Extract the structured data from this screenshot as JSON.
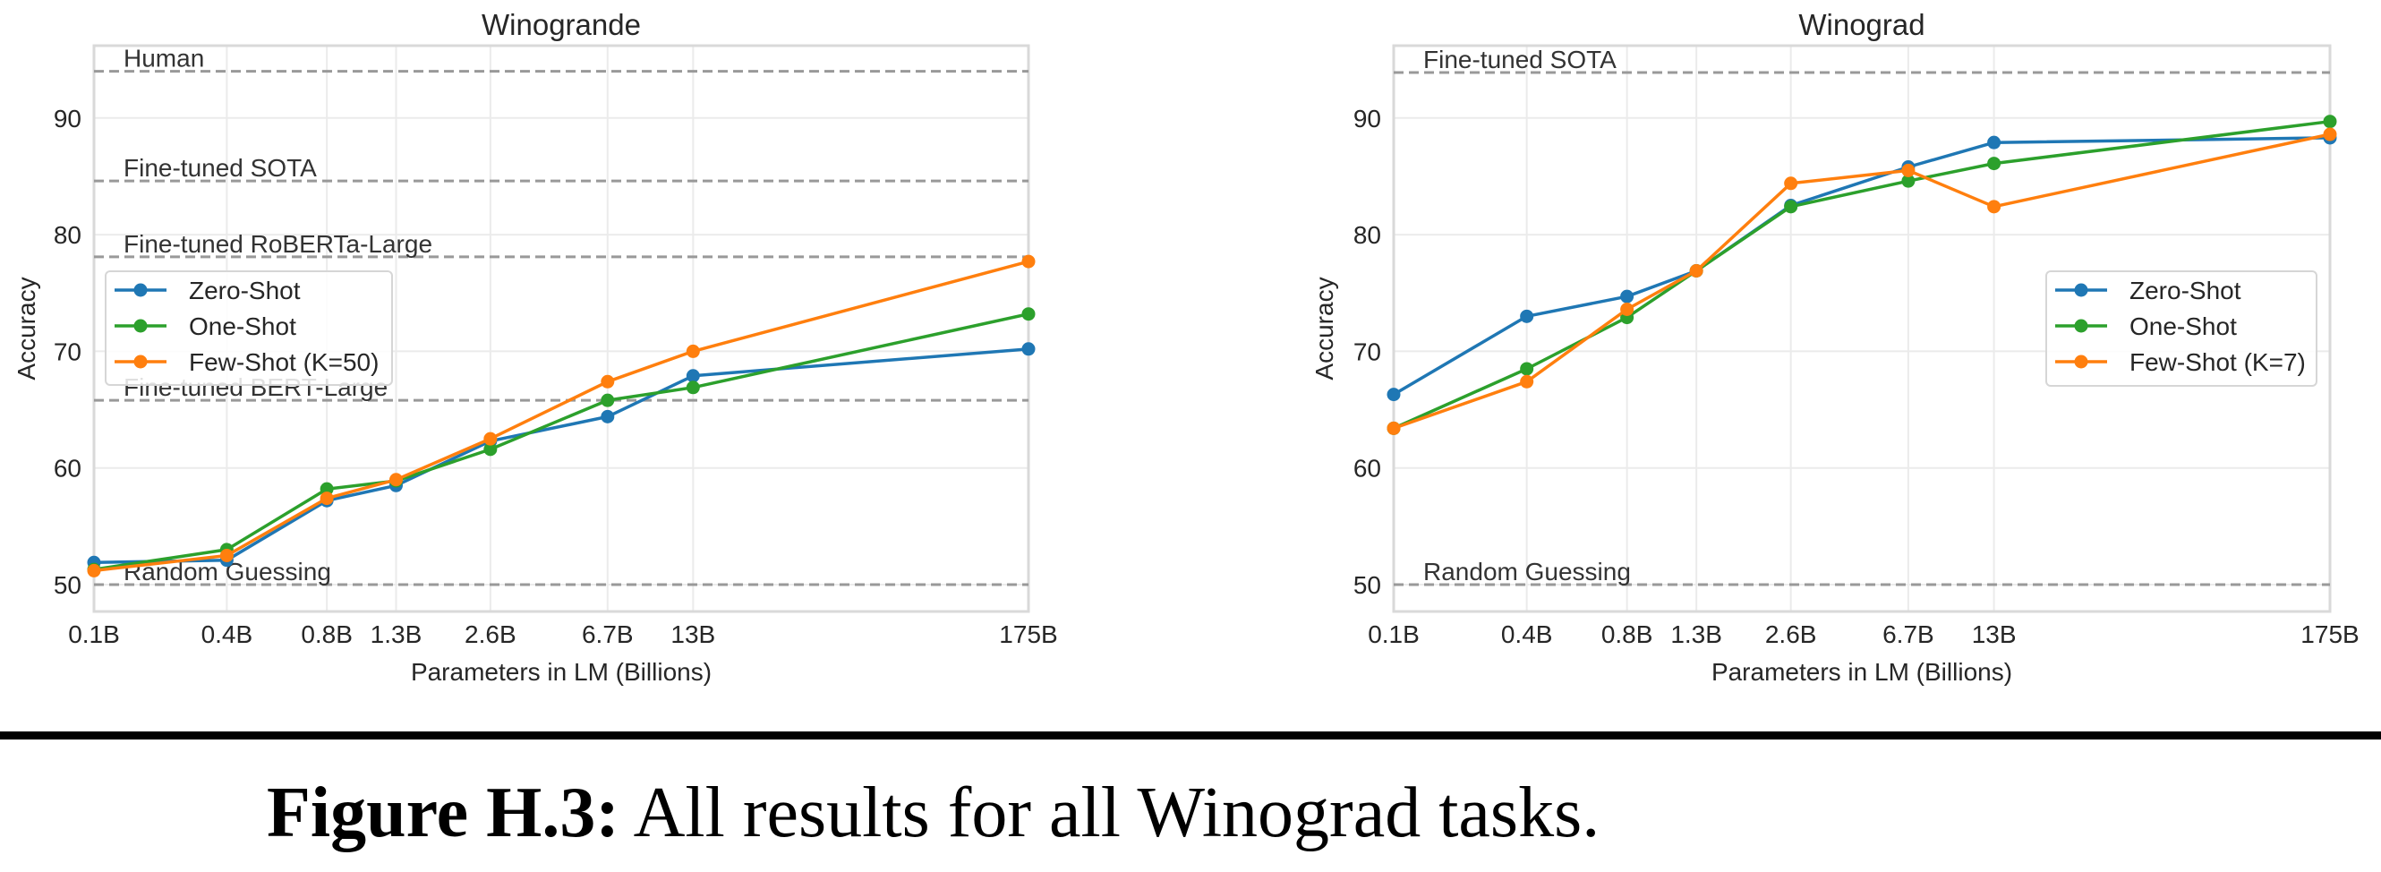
{
  "figure": {
    "caption_label": "Figure H.3:",
    "caption_text": "All results for all Winograd tasks."
  },
  "colors": {
    "zero_shot": "#1f77b4",
    "one_shot": "#2ca02c",
    "few_shot": "#ff7f0e",
    "reference_line": "#999999",
    "grid": "#ebebeb",
    "frame": "#d9d9d9"
  },
  "chart_data": [
    {
      "type": "line",
      "title": "Winogrande",
      "xlabel": "Parameters in LM (Billions)",
      "ylabel": "Accuracy",
      "xscale": "log",
      "x": [
        0.125,
        0.35,
        0.76,
        1.3,
        2.7,
        6.7,
        13,
        175
      ],
      "x_tick_labels": [
        "0.1B",
        "0.4B",
        "0.8B",
        "1.3B",
        "2.6B",
        "6.7B",
        "13B",
        "175B"
      ],
      "xlim": [
        0.125,
        175
      ],
      "ylim": [
        47.7,
        96.2
      ],
      "y_ticks": [
        50,
        60,
        70,
        80,
        90
      ],
      "y_tick_labels": [
        "50",
        "60",
        "70",
        "80",
        "90"
      ],
      "grid": true,
      "legend_position": "center-left",
      "series": [
        {
          "name": "Zero-Shot",
          "key": "zero_shot",
          "values": [
            51.9,
            52.1,
            57.2,
            58.5,
            62.3,
            64.4,
            67.9,
            70.2
          ]
        },
        {
          "name": "One-Shot",
          "key": "one_shot",
          "values": [
            51.3,
            53.0,
            58.2,
            58.9,
            61.6,
            65.8,
            66.9,
            73.2
          ]
        },
        {
          "name": "Few-Shot (K=50)",
          "key": "few_shot",
          "values": [
            51.2,
            52.5,
            57.4,
            59.0,
            62.5,
            67.4,
            70.0,
            77.7
          ]
        }
      ],
      "reference_lines": [
        {
          "label": "Human",
          "value": 94.0
        },
        {
          "label": "Fine-tuned SOTA",
          "value": 84.6
        },
        {
          "label": "Fine-tuned RoBERTa-Large",
          "value": 78.1
        },
        {
          "label": "Fine-tuned BERT-Large",
          "value": 65.8
        },
        {
          "label": "Random Guessing",
          "value": 50.0
        }
      ]
    },
    {
      "type": "line",
      "title": "Winograd",
      "xlabel": "Parameters in LM (Billions)",
      "ylabel": "Accuracy",
      "xscale": "log",
      "x": [
        0.125,
        0.35,
        0.76,
        1.3,
        2.7,
        6.7,
        13,
        175
      ],
      "x_tick_labels": [
        "0.1B",
        "0.4B",
        "0.8B",
        "1.3B",
        "2.6B",
        "6.7B",
        "13B",
        "175B"
      ],
      "xlim": [
        0.125,
        175
      ],
      "ylim": [
        47.7,
        96.2
      ],
      "y_ticks": [
        50,
        60,
        70,
        80,
        90
      ],
      "y_tick_labels": [
        "50",
        "60",
        "70",
        "80",
        "90"
      ],
      "grid": true,
      "legend_position": "center-right",
      "series": [
        {
          "name": "Zero-Shot",
          "key": "zero_shot",
          "values": [
            66.3,
            73.0,
            74.7,
            76.9,
            82.5,
            85.8,
            87.9,
            88.3
          ]
        },
        {
          "name": "One-Shot",
          "key": "one_shot",
          "values": [
            63.4,
            68.5,
            72.9,
            76.9,
            82.4,
            84.6,
            86.1,
            89.7
          ]
        },
        {
          "name": "Few-Shot (K=7)",
          "key": "few_shot",
          "values": [
            63.4,
            67.4,
            73.6,
            76.9,
            84.4,
            85.5,
            82.4,
            88.6
          ]
        }
      ],
      "reference_lines": [
        {
          "label": "Fine-tuned SOTA",
          "value": 93.9
        },
        {
          "label": "Random Guessing",
          "value": 50.0
        }
      ]
    }
  ]
}
